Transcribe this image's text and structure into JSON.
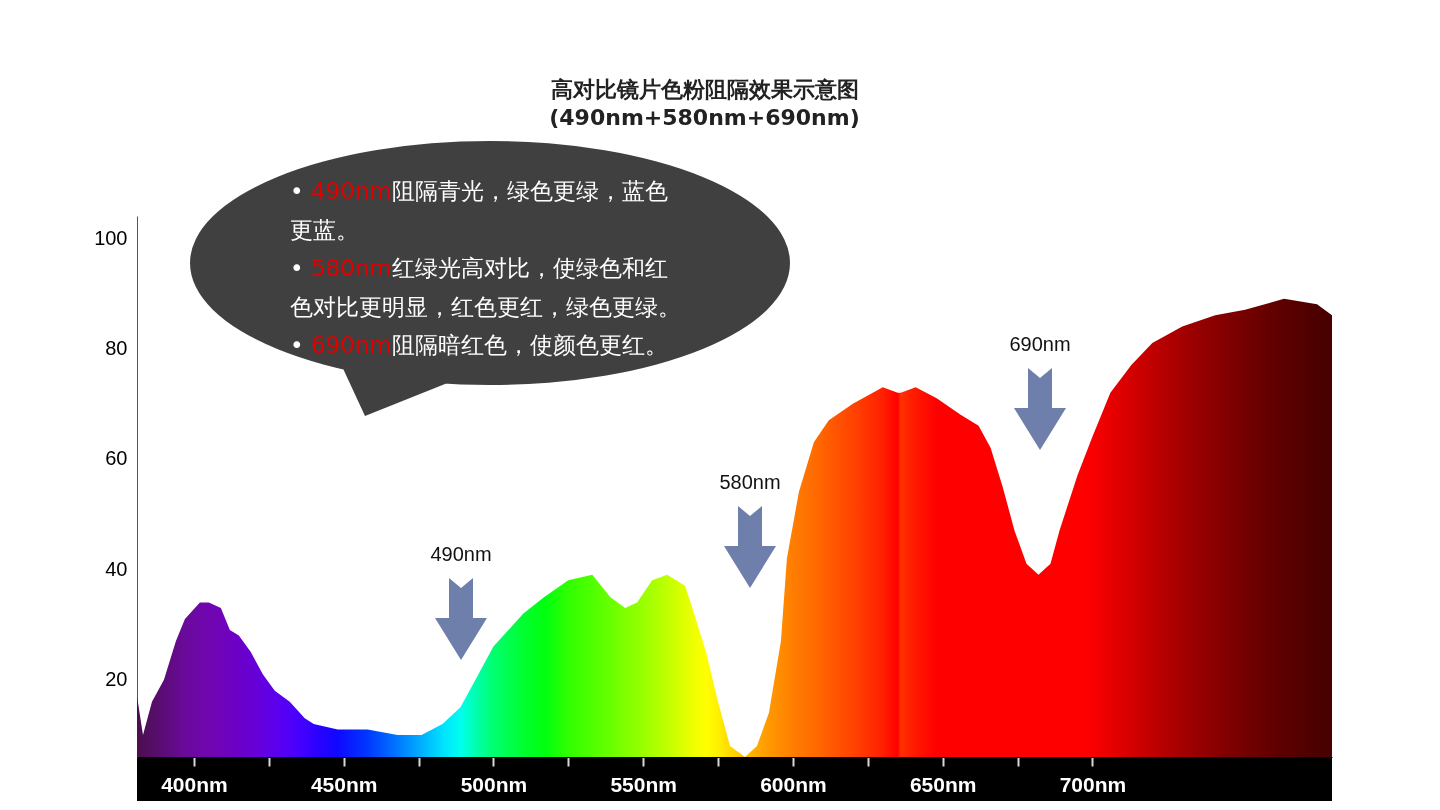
{
  "chart_data": {
    "type": "area",
    "title": "高对比镜片色粉阻隔效果示意图",
    "subtitle": "(490nm+580nm+690nm)",
    "x": [
      381,
      383,
      386,
      390,
      394,
      397,
      402,
      405,
      409,
      412,
      415,
      419,
      423,
      427,
      432,
      437,
      440,
      448,
      458,
      468,
      476,
      483,
      489,
      494,
      500,
      510,
      517,
      525,
      533,
      539,
      544,
      548,
      553,
      558,
      564,
      567,
      571,
      575,
      579,
      584,
      588,
      592,
      596,
      598,
      602,
      607,
      612,
      620,
      630,
      635,
      636,
      641,
      648,
      656,
      662,
      666,
      670,
      674,
      678,
      682,
      686,
      689,
      695,
      700,
      706,
      713,
      720,
      730,
      741,
      751,
      764,
      775,
      780
    ],
    "values": [
      17,
      10,
      16,
      20,
      27,
      31,
      34,
      34,
      33,
      29,
      28,
      25,
      21,
      18,
      16,
      13,
      12,
      11,
      11,
      10,
      10,
      12,
      15,
      20,
      26,
      32,
      35,
      38,
      39,
      35,
      33,
      34,
      38,
      39,
      37,
      32,
      25,
      16,
      8,
      6,
      8,
      14,
      27,
      42,
      54,
      63,
      67,
      70,
      73,
      72,
      72,
      73,
      71,
      68,
      66,
      62,
      55,
      47,
      41,
      39,
      41,
      47,
      57,
      64,
      72,
      77,
      81,
      84,
      86,
      87,
      89,
      88,
      86
    ],
    "colors": [
      "#4a0e4e",
      "#4e0e58",
      "#540e64",
      "#5c0c78",
      "#640a8c",
      "#6a0a9a",
      "#6e08a8",
      "#7006b0",
      "#7004b8",
      "#6e02c0",
      "#6c00c8",
      "#6800d4",
      "#6400e0",
      "#5c00ec",
      "#5000f8",
      "#4000ff",
      "#3000ff",
      "#1008ff",
      "#0038ff",
      "#0078ff",
      "#00b0ff",
      "#00e0ff",
      "#00fff0",
      "#00ffb0",
      "#00ff70",
      "#00ff30",
      "#00ff10",
      "#30ff00",
      "#50ff00",
      "#68ff00",
      "#80ff00",
      "#90ff00",
      "#a8ff00",
      "#c0ff00",
      "#e0ff00",
      "#f0ff00",
      "#ffff00",
      "#fff000",
      "#ffd800",
      "#ffc000",
      "#ffaa00",
      "#ff9800",
      "#ff8c00",
      "#ff8400",
      "#ff7800",
      "#ff6c00",
      "#ff5c00",
      "#ff4400",
      "#ff2000",
      "#ff0000",
      "#ff3000",
      "#ff1800",
      "#ff0000",
      "#ff0000",
      "#ff0000",
      "#ff0000",
      "#ff0000",
      "#ff0000",
      "#ff0000",
      "#ff0000",
      "#ff0000",
      "#ff0000",
      "#ff0000",
      "#fa0000",
      "#e80000",
      "#d40000",
      "#c00000",
      "#a40000",
      "#8a0000",
      "#740000",
      "#5c0000",
      "#4c0000",
      "#480000"
    ],
    "xlim": [
      381,
      780
    ],
    "xticks": [
      {
        "value": 400,
        "label": "400nm"
      },
      {
        "value": 425,
        "label": null
      },
      {
        "value": 450,
        "label": "450nm"
      },
      {
        "value": 475,
        "label": null
      },
      {
        "value": 500,
        "label": "500nm"
      },
      {
        "value": 525,
        "label": null
      },
      {
        "value": 550,
        "label": "550nm"
      },
      {
        "value": 575,
        "label": null
      },
      {
        "value": 600,
        "label": "600nm"
      },
      {
        "value": 625,
        "label": null
      },
      {
        "value": 650,
        "label": "650nm"
      },
      {
        "value": 675,
        "label": null
      },
      {
        "value": 700,
        "label": "700nm"
      }
    ],
    "ylim": [
      6,
      104
    ],
    "yticks": [
      20,
      40,
      60,
      80,
      100
    ],
    "annotations": [
      "• 490nm阻隔青光，绿色更绿，蓝色更蓝。",
      "• 580nm红绿光高对比，使绿色和红色对比更明显，红色更红，绿色更绿。",
      "• 690nm阻隔暗红色，使颜色更红。",
      "490nm",
      "580nm",
      "690nm"
    ]
  }
}
